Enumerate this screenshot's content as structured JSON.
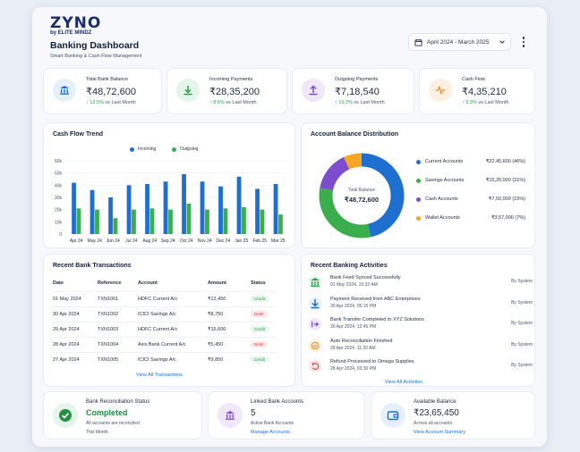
{
  "brand": {
    "name": "ZYNO",
    "by": "by ELITE MINDZ"
  },
  "header": {
    "title": "Banking Dashboard",
    "subtitle": "Smart Banking & Cash Flow Management",
    "date_range": "April 2024 - March 2025"
  },
  "kpis": [
    {
      "label": "Total Bank Balance",
      "value": "₹48,72,600",
      "change": "12.5%",
      "suffix": "vs Last Month",
      "icon": "bank-icon",
      "color": "#1f6fd1",
      "bg": "#e6f0fc"
    },
    {
      "label": "Incoming Payments",
      "value": "₹28,35,200",
      "change": "8.6%",
      "suffix": "vs Last Month",
      "icon": "download-icon",
      "color": "#2e9e4f",
      "bg": "#e4f6ea"
    },
    {
      "label": "Outgoing Payments",
      "value": "₹7,18,540",
      "change": "16.2%",
      "suffix": "vs Last Month",
      "icon": "upload-icon",
      "color": "#7c4dcc",
      "bg": "#efe8fb"
    },
    {
      "label": "Cash Flow",
      "value": "₹4,35,210",
      "change": "9.3%",
      "suffix": "vs Last Month",
      "icon": "pulse-icon",
      "color": "#f08a24",
      "bg": "#fdf0e2"
    }
  ],
  "cashflow": {
    "title": "Cash Flow Trend",
    "legend_incoming": "Incoming",
    "legend_outgoing": "Outgoing"
  },
  "chart_data": {
    "type": "bar",
    "categories": [
      "Apr 24",
      "May 24",
      "Jun 24",
      "Jul 24",
      "Aug 24",
      "Sep 24",
      "Oct 24",
      "Nov 24",
      "Dec 24",
      "Jan 25",
      "Feb 25",
      "Mar 25"
    ],
    "series": [
      {
        "name": "Incoming",
        "color": "#1f6fd1",
        "values": [
          42,
          36,
          30,
          40,
          41,
          43,
          49,
          43,
          39,
          47,
          37,
          41
        ]
      },
      {
        "name": "Outgoing",
        "color": "#3aae4c",
        "values": [
          21,
          20,
          13,
          20,
          21,
          20,
          25,
          20,
          21,
          22,
          20,
          16
        ]
      }
    ],
    "yticks": [
      "0",
      "10k",
      "20k",
      "30k",
      "40k",
      "50k",
      "60k"
    ],
    "ylim": [
      0,
      60
    ]
  },
  "distribution": {
    "title": "Account Balance Distribution",
    "center_label": "Total Balance",
    "center_value": "₹48,72,600",
    "accounts": [
      {
        "name": "Current Accounts",
        "value": "₹22,45,600 (46%)",
        "pct": 46,
        "color": "#1f6fd1"
      },
      {
        "name": "Savings Accounts",
        "value": "₹15,20,000 (31%)",
        "pct": 31,
        "color": "#3aae4c"
      },
      {
        "name": "Cash Accounts",
        "value": "₹7,50,000 (15%)",
        "pct": 15,
        "color": "#7c4dcc"
      },
      {
        "name": "Wallet Accounts",
        "value": "₹3,57,000 (7%)",
        "pct": 7,
        "color": "#f5a623"
      }
    ]
  },
  "transactions": {
    "title": "Recent Bank Transactions",
    "headers": [
      "Date",
      "Reference",
      "Account",
      "Amount",
      "Status"
    ],
    "rows": [
      [
        "01 May 2024",
        "TXN1001",
        "HDFC Current A/c",
        "₹12,450",
        "Credit"
      ],
      [
        "30 Apr 2024",
        "TXN1002",
        "ICICI Savings A/c",
        "₹8,750",
        "Debit"
      ],
      [
        "29 Apr 2024",
        "TXN1003",
        "HDFC Current A/c",
        "₹15,600",
        "Credit"
      ],
      [
        "28 Apr 2024",
        "TXN1004",
        "Axis Bank Current A/c",
        "₹5,450",
        "Debit"
      ],
      [
        "27 Apr 2024",
        "TXN1005",
        "ICICI Savings A/c",
        "₹9,850",
        "Credit"
      ]
    ],
    "view_all": "View All Transactions"
  },
  "activities": {
    "title": "Recent Banking Activities",
    "items": [
      {
        "title": "Bank Feed Synced Successfully",
        "time": "01 May 2024, 10:32 AM",
        "by": "By System",
        "icon": "bank-icon",
        "color": "#2e9e4f",
        "bg": "#e4f6ea"
      },
      {
        "title": "Payment Received from ABC Enterprises",
        "time": "30 Apr 2024, 05:15 PM",
        "by": "By System",
        "icon": "download-icon",
        "color": "#1f6fd1",
        "bg": "#e6f0fc"
      },
      {
        "title": "Bank Transfer Completed to XYZ Solutions",
        "time": "30 Apr 2024, 12:45 PM",
        "by": "By System",
        "icon": "transfer-icon",
        "color": "#7c4dcc",
        "bg": "#efe8fb"
      },
      {
        "title": "Auto Reconciliation Finished",
        "time": "29 Apr 2024, 11:20 AM",
        "by": "By System",
        "icon": "check-icon",
        "color": "#f08a24",
        "bg": "#fdf0e2"
      },
      {
        "title": "Refund Processed to Omega Supplies",
        "time": "28 Apr 2024, 03:30 PM",
        "by": "By System",
        "icon": "refund-icon",
        "color": "#d64545",
        "bg": "#fde8e8"
      }
    ],
    "view_all": "View All Activities"
  },
  "bottom": [
    {
      "label": "Bank Reconciliation Status",
      "value": "Completed",
      "sub": "All accounts are reconciled",
      "foot": "This Month",
      "icon": "check-circle-icon"
    },
    {
      "label": "Linked Bank Accounts",
      "value": "5",
      "sub": "Active Bank Accounts",
      "foot": "Manage Accounts",
      "icon": "bank-icon"
    },
    {
      "label": "Available Balance",
      "value": "₹23,65,450",
      "sub": "Across all accounts",
      "foot": "View Account Summary",
      "icon": "wallet-icon"
    }
  ]
}
